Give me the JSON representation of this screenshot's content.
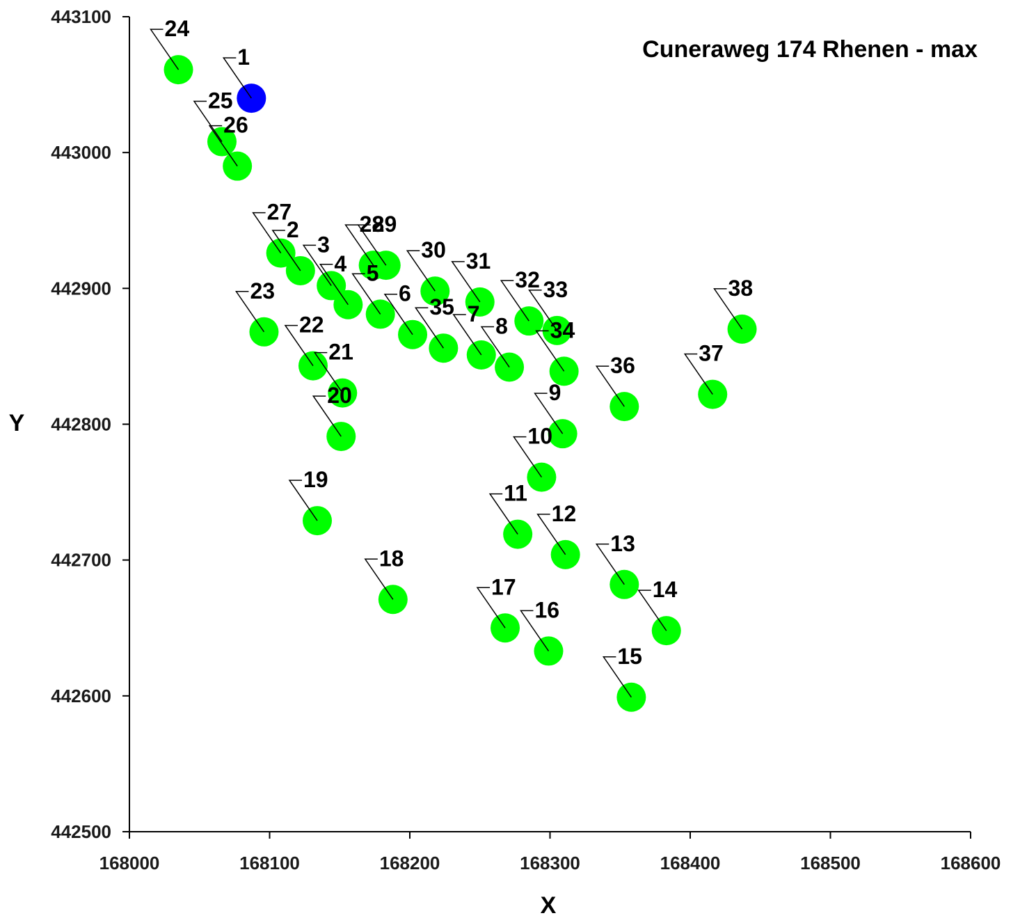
{
  "chart_data": {
    "type": "scatter",
    "title": "Cuneraweg 174 Rhenen - max",
    "xlabel": "X",
    "ylabel": "Y",
    "xlim": [
      168000,
      168600
    ],
    "ylim": [
      442500,
      443100
    ],
    "x_ticks": [
      168000,
      168100,
      168200,
      168300,
      168400,
      168500,
      168600
    ],
    "y_ticks": [
      442500,
      442600,
      442700,
      442800,
      442900,
      443000,
      443100
    ],
    "grid": false,
    "legend": "none",
    "colors": {
      "source": "#0000ff",
      "receptor": "#00ff00",
      "axis": "#000000"
    },
    "points": [
      {
        "label": "1",
        "x": 168087,
        "y": 443040,
        "kind": "source"
      },
      {
        "label": "2",
        "x": 168122,
        "y": 442913,
        "kind": "receptor"
      },
      {
        "label": "3",
        "x": 168144,
        "y": 442902,
        "kind": "receptor"
      },
      {
        "label": "4",
        "x": 168156,
        "y": 442888,
        "kind": "receptor"
      },
      {
        "label": "5",
        "x": 168179,
        "y": 442881,
        "kind": "receptor"
      },
      {
        "label": "6",
        "x": 168202,
        "y": 442866,
        "kind": "receptor"
      },
      {
        "label": "7",
        "x": 168251,
        "y": 442851,
        "kind": "receptor"
      },
      {
        "label": "8",
        "x": 168271,
        "y": 442842,
        "kind": "receptor"
      },
      {
        "label": "9",
        "x": 168309,
        "y": 442793,
        "kind": "receptor"
      },
      {
        "label": "10",
        "x": 168294,
        "y": 442761,
        "kind": "receptor"
      },
      {
        "label": "11",
        "x": 168277,
        "y": 442719,
        "kind": "receptor"
      },
      {
        "label": "12",
        "x": 168311,
        "y": 442704,
        "kind": "receptor"
      },
      {
        "label": "13",
        "x": 168353,
        "y": 442682,
        "kind": "receptor"
      },
      {
        "label": "14",
        "x": 168383,
        "y": 442648,
        "kind": "receptor"
      },
      {
        "label": "15",
        "x": 168358,
        "y": 442599,
        "kind": "receptor"
      },
      {
        "label": "16",
        "x": 168299,
        "y": 442633,
        "kind": "receptor"
      },
      {
        "label": "17",
        "x": 168268,
        "y": 442650,
        "kind": "receptor"
      },
      {
        "label": "18",
        "x": 168188,
        "y": 442671,
        "kind": "receptor"
      },
      {
        "label": "19",
        "x": 168134,
        "y": 442729,
        "kind": "receptor"
      },
      {
        "label": "20",
        "x": 168151,
        "y": 442791,
        "kind": "receptor"
      },
      {
        "label": "21",
        "x": 168152,
        "y": 442823,
        "kind": "receptor"
      },
      {
        "label": "22",
        "x": 168131,
        "y": 442843,
        "kind": "receptor"
      },
      {
        "label": "23",
        "x": 168096,
        "y": 442868,
        "kind": "receptor"
      },
      {
        "label": "24",
        "x": 168035,
        "y": 443061,
        "kind": "receptor"
      },
      {
        "label": "25",
        "x": 168066,
        "y": 443008,
        "kind": "receptor"
      },
      {
        "label": "26",
        "x": 168077,
        "y": 442990,
        "kind": "receptor"
      },
      {
        "label": "27",
        "x": 168108,
        "y": 442926,
        "kind": "receptor"
      },
      {
        "label": "28",
        "x": 168174,
        "y": 442917,
        "kind": "receptor"
      },
      {
        "label": "29",
        "x": 168183,
        "y": 442917,
        "kind": "receptor"
      },
      {
        "label": "30",
        "x": 168218,
        "y": 442898,
        "kind": "receptor"
      },
      {
        "label": "31",
        "x": 168250,
        "y": 442890,
        "kind": "receptor"
      },
      {
        "label": "32",
        "x": 168285,
        "y": 442876,
        "kind": "receptor"
      },
      {
        "label": "33",
        "x": 168305,
        "y": 442869,
        "kind": "receptor"
      },
      {
        "label": "34",
        "x": 168310,
        "y": 442839,
        "kind": "receptor"
      },
      {
        "label": "35",
        "x": 168224,
        "y": 442856,
        "kind": "receptor"
      },
      {
        "label": "36",
        "x": 168353,
        "y": 442813,
        "kind": "receptor"
      },
      {
        "label": "37",
        "x": 168416,
        "y": 442822,
        "kind": "receptor"
      },
      {
        "label": "38",
        "x": 168437,
        "y": 442870,
        "kind": "receptor"
      }
    ]
  }
}
